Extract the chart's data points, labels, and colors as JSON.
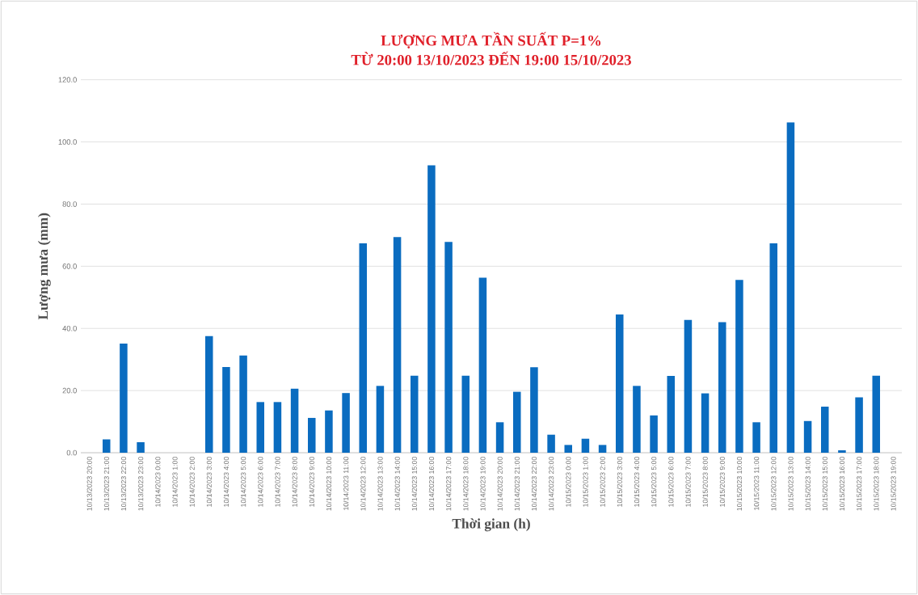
{
  "chart_data": {
    "type": "bar",
    "title": "LƯỢNG MƯA TẦN SUẤT P=1%",
    "subtitle": "TỪ 20:00 13/10/2023 ĐẾN 19:00 15/10/2023",
    "xlabel": "Thời gian (h)",
    "ylabel": "Lượng mưa (mm)",
    "categories": [
      "10/13/2023 20:00",
      "10/13/2023 21:00",
      "10/13/2023 22:00",
      "10/13/2023 23:00",
      "10/14/2023 0:00",
      "10/14/2023 1:00",
      "10/14/2023 2:00",
      "10/14/2023 3:00",
      "10/14/2023 4:00",
      "10/14/2023 5:00",
      "10/14/2023 6:00",
      "10/14/2023 7:00",
      "10/14/2023 8:00",
      "10/14/2023 9:00",
      "10/14/2023 10:00",
      "10/14/2023 11:00",
      "10/14/2023 12:00",
      "10/14/2023 13:00",
      "10/14/2023 14:00",
      "10/14/2023 15:00",
      "10/14/2023 16:00",
      "10/14/2023 17:00",
      "10/14/2023 18:00",
      "10/14/2023 19:00",
      "10/14/2023 20:00",
      "10/14/2023 21:00",
      "10/14/2023 22:00",
      "10/14/2023 23:00",
      "10/15/2023 0:00",
      "10/15/2023 1:00",
      "10/15/2023 2:00",
      "10/15/2023 3:00",
      "10/15/2023 4:00",
      "10/15/2023 5:00",
      "10/15/2023 6:00",
      "10/15/2023 7:00",
      "10/15/2023 8:00",
      "10/15/2023 9:00",
      "10/15/2023 10:00",
      "10/15/2023 11:00",
      "10/15/2023 12:00",
      "10/15/2023 13:00",
      "10/15/2023 14:00",
      "10/15/2023 15:00",
      "10/15/2023 16:00",
      "10/15/2023 17:00",
      "10/15/2023 18:00",
      "10/15/2023 19:00"
    ],
    "values": [
      0,
      4.3,
      35.1,
      3.4,
      0,
      0,
      0,
      37.5,
      27.6,
      31.3,
      16.3,
      16.3,
      20.6,
      11.2,
      13.6,
      19.2,
      67.4,
      21.5,
      69.4,
      24.8,
      92.5,
      67.8,
      24.8,
      56.3,
      9.8,
      19.6,
      27.5,
      5.8,
      2.5,
      4.5,
      2.5,
      44.5,
      21.5,
      12,
      24.7,
      42.7,
      19.1,
      42,
      55.6,
      9.8,
      67.4,
      106.3,
      10.2,
      14.8,
      0.8,
      17.8,
      24.8,
      0
    ],
    "color": "#0a6cc0",
    "ylim": [
      0,
      120
    ],
    "yticks": [
      {
        "value": 0,
        "label": "0.0"
      },
      {
        "value": 20,
        "label": "20.0"
      },
      {
        "value": 40,
        "label": "40.0"
      },
      {
        "value": 60,
        "label": "60.0"
      },
      {
        "value": 80,
        "label": "80.0"
      },
      {
        "value": 100,
        "label": "100.0"
      },
      {
        "value": 120,
        "label": "120.0"
      }
    ],
    "grid": "y"
  }
}
